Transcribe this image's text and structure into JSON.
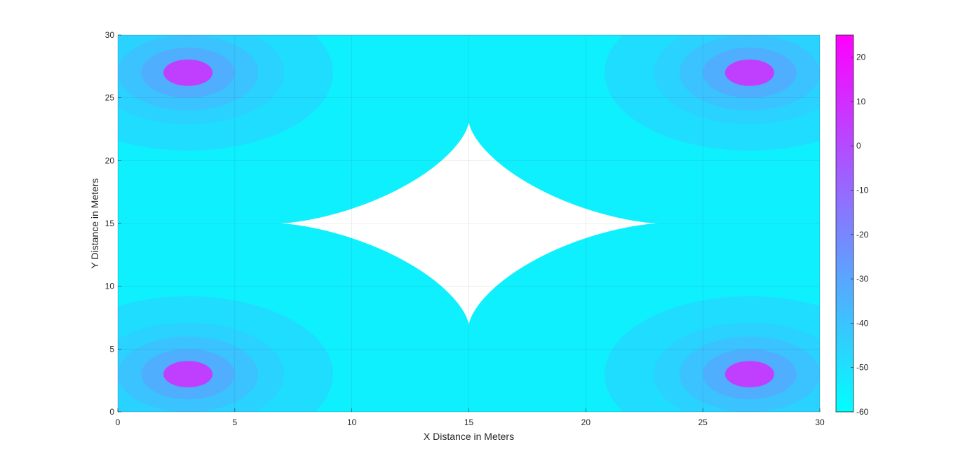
{
  "chart_data": {
    "type": "heatmap",
    "plot_style": "filled contour",
    "title": "",
    "xlabel": "X Distance in Meters",
    "ylabel": "Y Distance in Meters",
    "xlim": [
      0,
      30
    ],
    "ylim": [
      0,
      30
    ],
    "xticks": [
      "0",
      "5",
      "10",
      "15",
      "20",
      "25",
      "30"
    ],
    "yticks": [
      "0",
      "5",
      "10",
      "15",
      "20",
      "25",
      "30"
    ],
    "grid": true,
    "colormap": "cool",
    "colormap_colors": [
      "#00ffff",
      "#ff00ff"
    ],
    "colorbar": {
      "placement": "right",
      "clim": [
        -60,
        25
      ],
      "ticks": [
        "20",
        "10",
        "0",
        "-10",
        "-20",
        "-30",
        "-40",
        "-50",
        "-60"
      ]
    },
    "sources": [
      {
        "x": 3,
        "y": 27
      },
      {
        "x": 27,
        "y": 27
      },
      {
        "x": 3,
        "y": 3
      },
      {
        "x": 27,
        "y": 3
      }
    ],
    "contour_levels": [
      {
        "level": -53,
        "color": "#1eddff",
        "radius": 6.2
      },
      {
        "level": -48,
        "color": "#2ad2ff",
        "radius": 4.1
      },
      {
        "level": -42,
        "color": "#3ac3ff",
        "radius": 3.0
      },
      {
        "level": -35,
        "color": "#50aeff",
        "radius": 2.0
      },
      {
        "level": -15,
        "color": "#c03fff",
        "radius": 1.05
      }
    ],
    "base_color": "#0ff0ff",
    "uncovered_region": {
      "color": "#ffffff",
      "center": {
        "x": 15,
        "y": 15
      },
      "x_extent": [
        7,
        23.2
      ],
      "y_extent": [
        7,
        23.2
      ]
    }
  }
}
